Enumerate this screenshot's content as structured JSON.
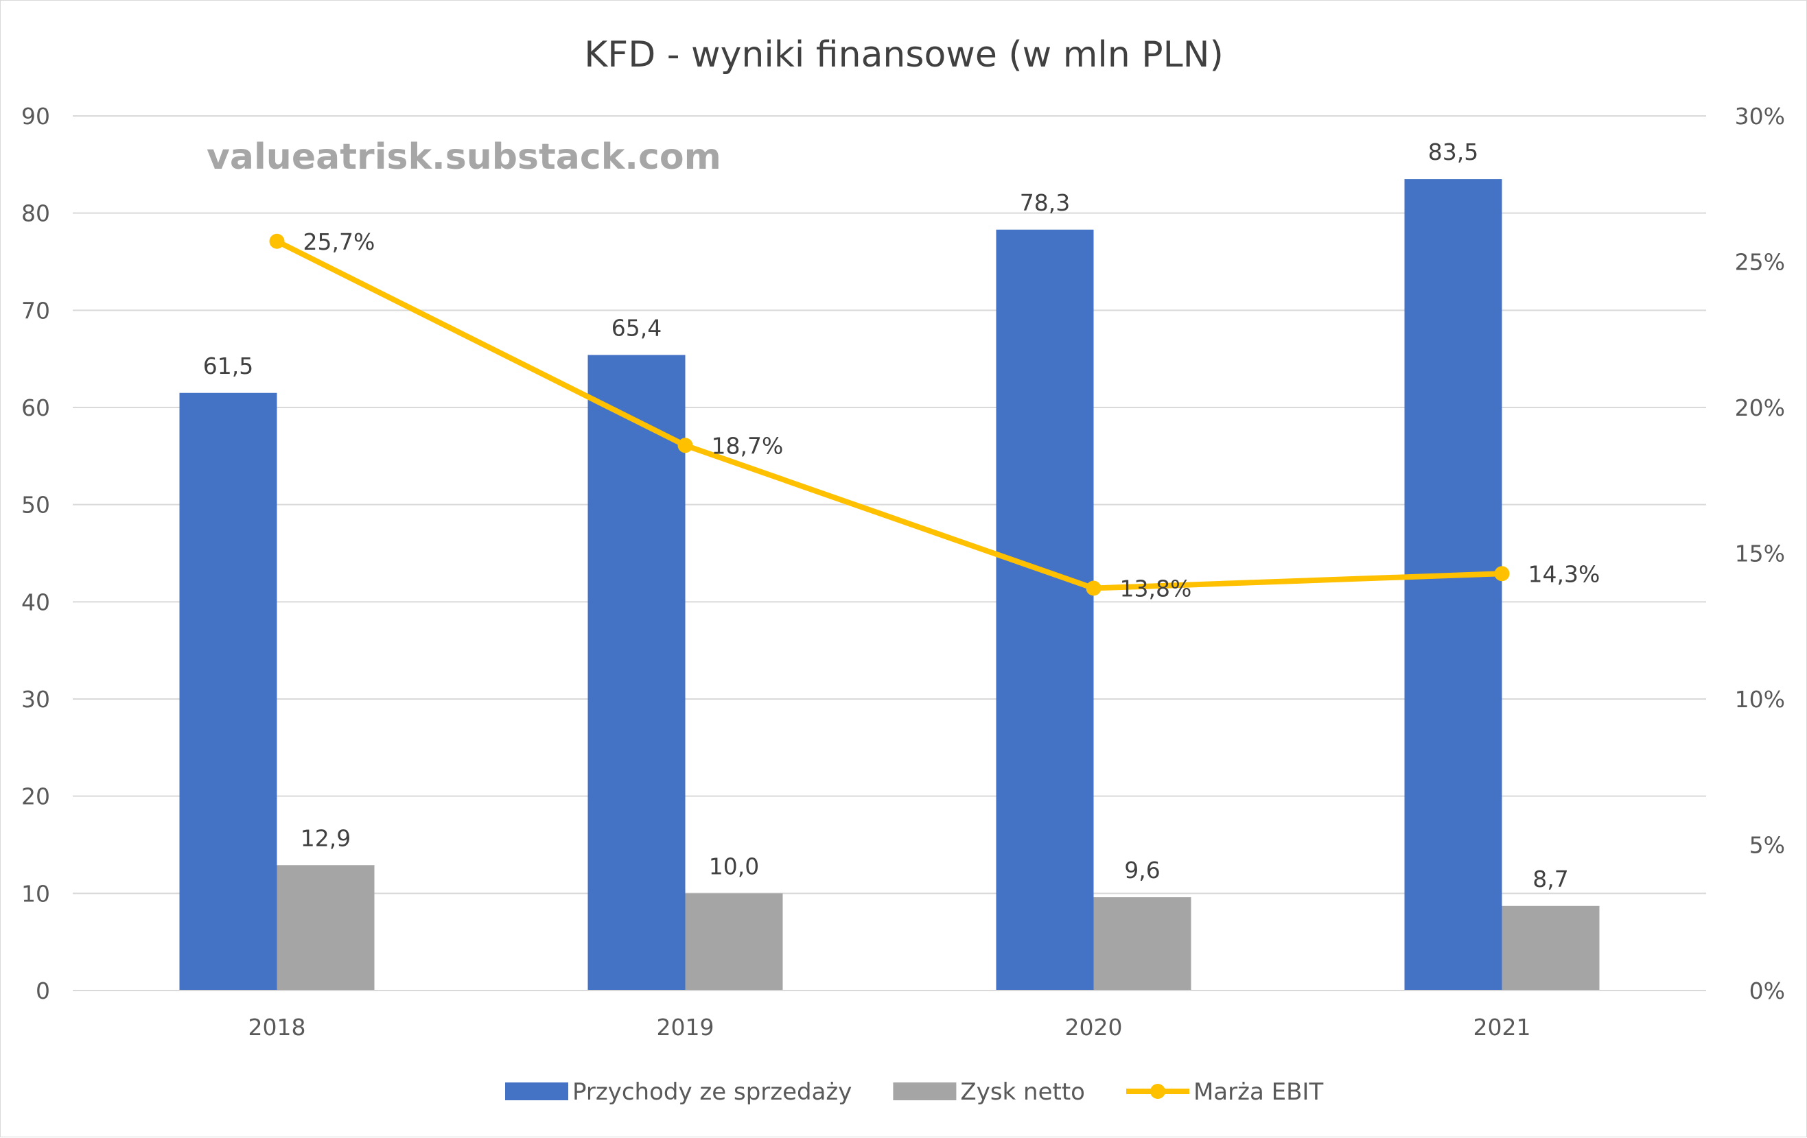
{
  "chart_data": {
    "type": "bar",
    "title": "KFD - wyniki finansowe (w mln PLN)",
    "watermark": "valueatrisk.substack.com",
    "categories": [
      "2018",
      "2019",
      "2020",
      "2021"
    ],
    "series": [
      {
        "name": "Przychody ze sprzedaży",
        "type": "bar",
        "axis": "left",
        "color": "#4472c4",
        "values": [
          61.5,
          65.4,
          78.3,
          83.5
        ],
        "labels": [
          "61,5",
          "65,4",
          "78,3",
          "83,5"
        ]
      },
      {
        "name": "Zysk netto",
        "type": "bar",
        "axis": "left",
        "color": "#a5a5a5",
        "values": [
          12.9,
          10.0,
          9.6,
          8.7
        ],
        "labels": [
          "12,9",
          "10,0",
          "9,6",
          "8,7"
        ]
      },
      {
        "name": "Marża EBIT",
        "type": "line",
        "axis": "right",
        "color": "#ffc000",
        "values": [
          25.7,
          18.7,
          13.8,
          14.3
        ],
        "labels": [
          "25,7%",
          "18,7%",
          "13,8%",
          "14,3%"
        ]
      }
    ],
    "y_left": {
      "min": 0,
      "max": 90,
      "ticks": [
        "0",
        "10",
        "20",
        "30",
        "40",
        "50",
        "60",
        "70",
        "80",
        "90"
      ]
    },
    "y_right": {
      "min": 0,
      "max": 30,
      "ticks": [
        "0%",
        "5%",
        "10%",
        "15%",
        "20%",
        "25%",
        "30%"
      ]
    },
    "gridlines": true,
    "legend_position": "bottom",
    "gridline_color": "#d9d9d9"
  }
}
